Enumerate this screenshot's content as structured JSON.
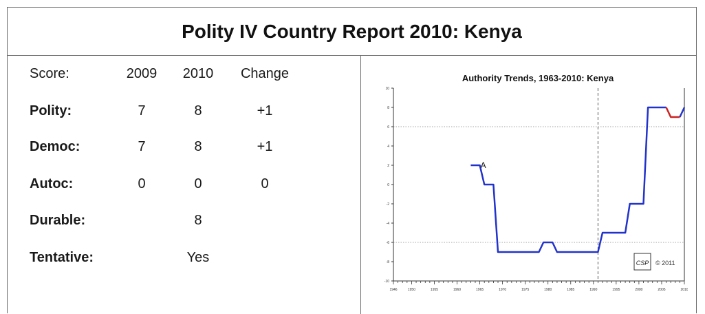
{
  "header": {
    "title": "Polity IV Country Report 2010: Kenya"
  },
  "scores": {
    "header": {
      "label": "Score:",
      "y1": "2009",
      "y2": "2010",
      "change": "Change"
    },
    "rows": [
      {
        "label": "Polity:",
        "y1": "7",
        "y2": "8",
        "change": "+1"
      },
      {
        "label": "Democ:",
        "y1": "7",
        "y2": "8",
        "change": "+1"
      },
      {
        "label": "Autoc:",
        "y1": "0",
        "y2": "0",
        "change": "0"
      },
      {
        "label": "Durable:",
        "y1": "",
        "y2": "8",
        "change": ""
      },
      {
        "label": "Tentative:",
        "y1": "",
        "y2": "Yes",
        "change": ""
      }
    ]
  },
  "chart_data": {
    "type": "line",
    "title": "Authority Trends, 1963-2010: Kenya",
    "xlabel": "",
    "ylabel": "",
    "xlim": [
      1946,
      2010
    ],
    "ylim": [
      -10,
      10
    ],
    "x_ticks": [
      "1946",
      "1950",
      "1955",
      "1960",
      "1965",
      "1970",
      "1975",
      "1980",
      "1985",
      "1990",
      "1995",
      "2000",
      "2005",
      "2010"
    ],
    "y_ticks": [
      "10",
      "8",
      "6",
      "4",
      "2",
      "0",
      "-2",
      "-4",
      "-6",
      "-8",
      "-10"
    ],
    "reference_lines": {
      "horizontal": [
        6,
        -6
      ],
      "vertical": [
        1991
      ]
    },
    "grid": false,
    "series": [
      {
        "color": "#2233cc",
        "points": [
          [
            1963,
            2
          ],
          [
            1965,
            2
          ],
          [
            1966,
            0
          ],
          [
            1968,
            0
          ],
          [
            1969,
            -7
          ],
          [
            1978,
            -7
          ],
          [
            1979,
            -6
          ],
          [
            1981,
            -6
          ],
          [
            1982,
            -7
          ],
          [
            1991,
            -7
          ],
          [
            1992,
            -5
          ],
          [
            1997,
            -5
          ],
          [
            1998,
            -2
          ],
          [
            2001,
            -2
          ],
          [
            2002,
            8
          ],
          [
            2006,
            8
          ]
        ]
      },
      {
        "color": "#cc2222",
        "points": [
          [
            2006,
            8
          ],
          [
            2007,
            7
          ],
          [
            2008,
            7
          ],
          [
            2009,
            7
          ]
        ]
      },
      {
        "color": "#2233cc",
        "points": [
          [
            2009,
            7
          ],
          [
            2010,
            8
          ]
        ]
      }
    ],
    "annotations": [
      {
        "text": "A",
        "x": 1965,
        "y": 2
      }
    ],
    "logo": {
      "text": "CSP",
      "caption": "© 2011"
    }
  }
}
